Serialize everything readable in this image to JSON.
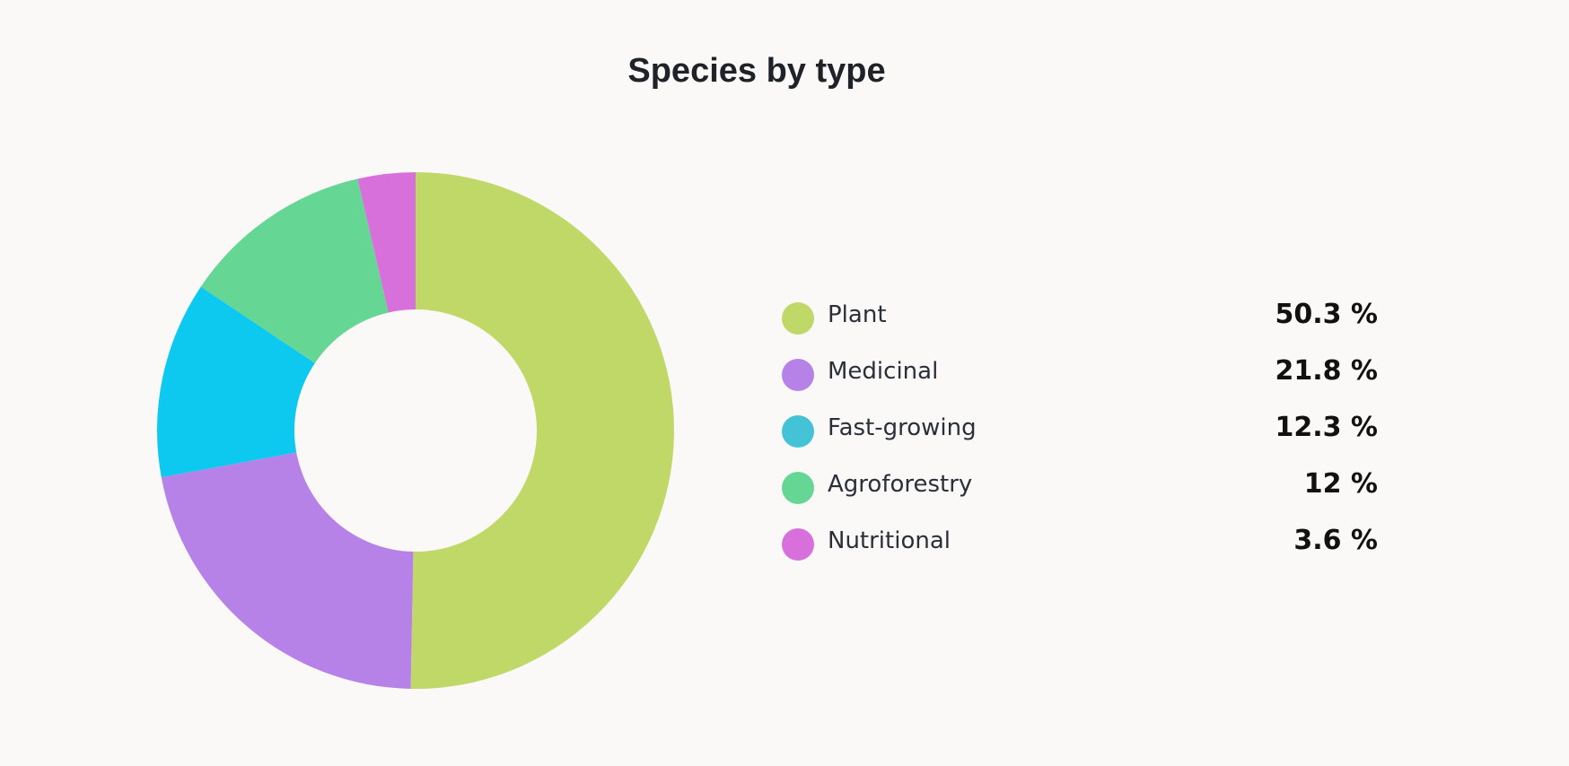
{
  "chart_data": {
    "type": "pie",
    "variant": "donut",
    "title": "Species by type",
    "legend_position": "right",
    "categories": [
      "Plant",
      "Medicinal",
      "Fast-growing",
      "Agroforestry",
      "Nutritional"
    ],
    "values": [
      50.3,
      21.8,
      12.3,
      12,
      3.6
    ],
    "value_labels": [
      "50.3 %",
      "21.8 %",
      "12.3 %",
      "12 %",
      "3.6 %"
    ],
    "colors": [
      "#c0d867",
      "#b682e8",
      "#0dc9ef",
      "#66d695",
      "#d870dc"
    ],
    "legend_colors": [
      "#c0d867",
      "#b682e8",
      "#45c3d6",
      "#66d695",
      "#d870dc"
    ],
    "unit": "%"
  }
}
